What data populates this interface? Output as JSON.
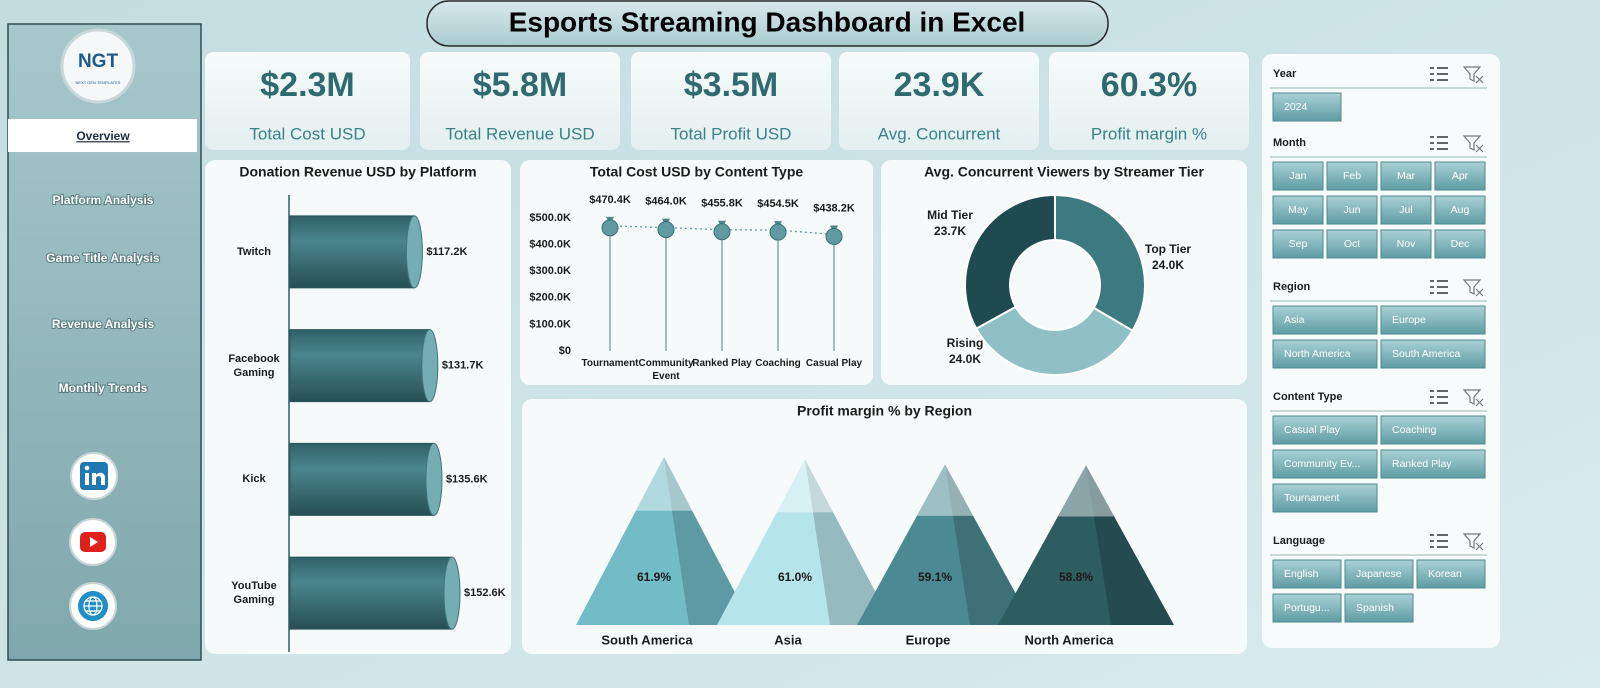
{
  "title": "Esports Streaming Dashboard in Excel",
  "logo": {
    "name": "NGT",
    "tagline": "NEXT GEN TEMPLATES"
  },
  "nav": [
    "Overview",
    "Platform Analysis",
    "Game Title Analysis",
    "Revenue Analysis",
    "Monthly Trends"
  ],
  "kpis": [
    {
      "value": "$2.3M",
      "label": "Total Cost USD"
    },
    {
      "value": "$5.8M",
      "label": "Total Revenue USD"
    },
    {
      "value": "$3.5M",
      "label": "Total Profit USD"
    },
    {
      "value": "23.9K",
      "label": "Avg. Concurrent"
    },
    {
      "value": "60.3%",
      "label": "Profit margin %"
    }
  ],
  "chart_data": [
    {
      "type": "bar",
      "orientation": "horizontal",
      "title": "Donation Revenue USD by Platform",
      "categories": [
        "Twitch",
        "Facebook Gaming",
        "Kick",
        "YouTube Gaming"
      ],
      "values": [
        117.2,
        131.7,
        135.6,
        152.6
      ],
      "value_labels": [
        "$117.2K",
        "$131.7K",
        "$135.6K",
        "$152.6K"
      ],
      "color": "#3e7a81"
    },
    {
      "type": "line",
      "title": "Total Cost USD by Content Type",
      "categories": [
        "Tournament",
        "Community Event",
        "Ranked Play",
        "Coaching",
        "Casual Play"
      ],
      "values": [
        470.4,
        464.0,
        455.8,
        454.5,
        438.2
      ],
      "value_labels": [
        "$470.4K",
        "$464.0K",
        "$455.8K",
        "$454.5K",
        "$438.2K"
      ],
      "ylim": [
        0,
        500
      ],
      "yticks": [
        {
          "value": 0,
          "label": "$0"
        },
        {
          "value": 100,
          "label": "$100.0K"
        },
        {
          "value": 200,
          "label": "$200.0K"
        },
        {
          "value": 300,
          "label": "$300.0K"
        },
        {
          "value": 400,
          "label": "$400.0K"
        },
        {
          "value": 500,
          "label": "$500.0K"
        }
      ],
      "color": "#5f9ba1"
    },
    {
      "type": "donut",
      "title": "Avg. Concurrent Viewers by Streamer Tier",
      "categories": [
        "Top Tier",
        "Rising",
        "Mid Tier"
      ],
      "values": [
        24.0,
        24.0,
        23.7
      ],
      "value_labels": [
        "24.0K",
        "24.0K",
        "23.7K"
      ],
      "colors": [
        "#3d7a80",
        "#8fc0c5",
        "#1f4b50"
      ]
    },
    {
      "type": "pyramid",
      "title": "Profit margin % by Region",
      "categories": [
        "South America",
        "Asia",
        "Europe",
        "North America"
      ],
      "values": [
        61.9,
        61.0,
        59.1,
        58.8
      ],
      "value_labels": [
        "61.9%",
        "61.0%",
        "59.1%",
        "58.8%"
      ],
      "colors": [
        "#72bcc7",
        "#b6e4eb",
        "#4b8a92",
        "#2d5c61"
      ]
    }
  ],
  "slicers": [
    {
      "title": "Year",
      "items": [
        "2024"
      ]
    },
    {
      "title": "Month",
      "items": [
        "Jan",
        "Feb",
        "Mar",
        "Apr",
        "May",
        "Jun",
        "Jul",
        "Aug",
        "Sep",
        "Oct",
        "Nov",
        "Dec"
      ]
    },
    {
      "title": "Region",
      "items": [
        "Asia",
        "Europe",
        "North America",
        "South America"
      ]
    },
    {
      "title": "Content Type",
      "items": [
        "Casual Play",
        "Coaching",
        "Community Ev...",
        "Ranked Play",
        "Tournament"
      ]
    },
    {
      "title": "Language",
      "items": [
        "English",
        "Japanese",
        "Korean",
        "Portugu...",
        "Spanish"
      ]
    }
  ]
}
